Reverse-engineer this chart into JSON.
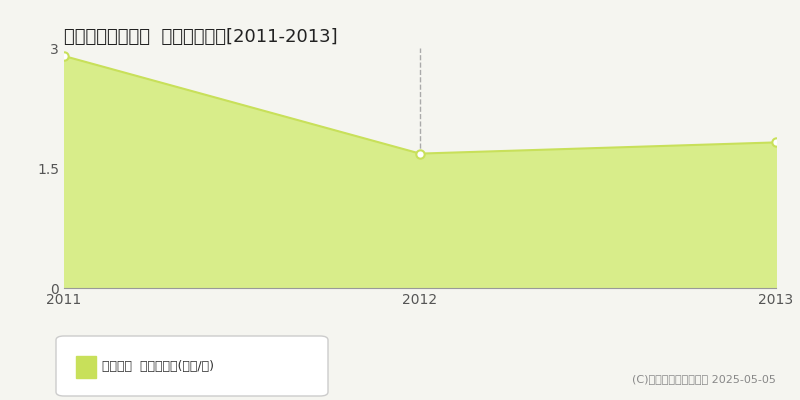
{
  "title": "耶麻郡磐梯町赤枝  土地価格推移[2011-2013]",
  "years": [
    2011,
    2012,
    2013
  ],
  "values": [
    2.9,
    1.68,
    1.82
  ],
  "line_color": "#c8e05a",
  "fill_color": "#d8ed8a",
  "marker_color": "#ffffff",
  "marker_edge_color": "#c8e05a",
  "ylim": [
    0,
    3.0
  ],
  "yticks": [
    0,
    1.5,
    3
  ],
  "xticks": [
    2011,
    2012,
    2013
  ],
  "grid_color": "#cccccc",
  "bg_color": "#f5f5f0",
  "plot_bg_color": "#f5f5f0",
  "legend_label": "土地価格  平均坪単価(万円/坪)",
  "legend_marker_color": "#c8e05a",
  "copyright_text": "(C)土地価格ドットコム 2025-05-05",
  "title_fontsize": 13,
  "axis_fontsize": 10,
  "legend_fontsize": 9,
  "copyright_fontsize": 8,
  "vline_x": 2012,
  "vline_color": "#aaaaaa"
}
